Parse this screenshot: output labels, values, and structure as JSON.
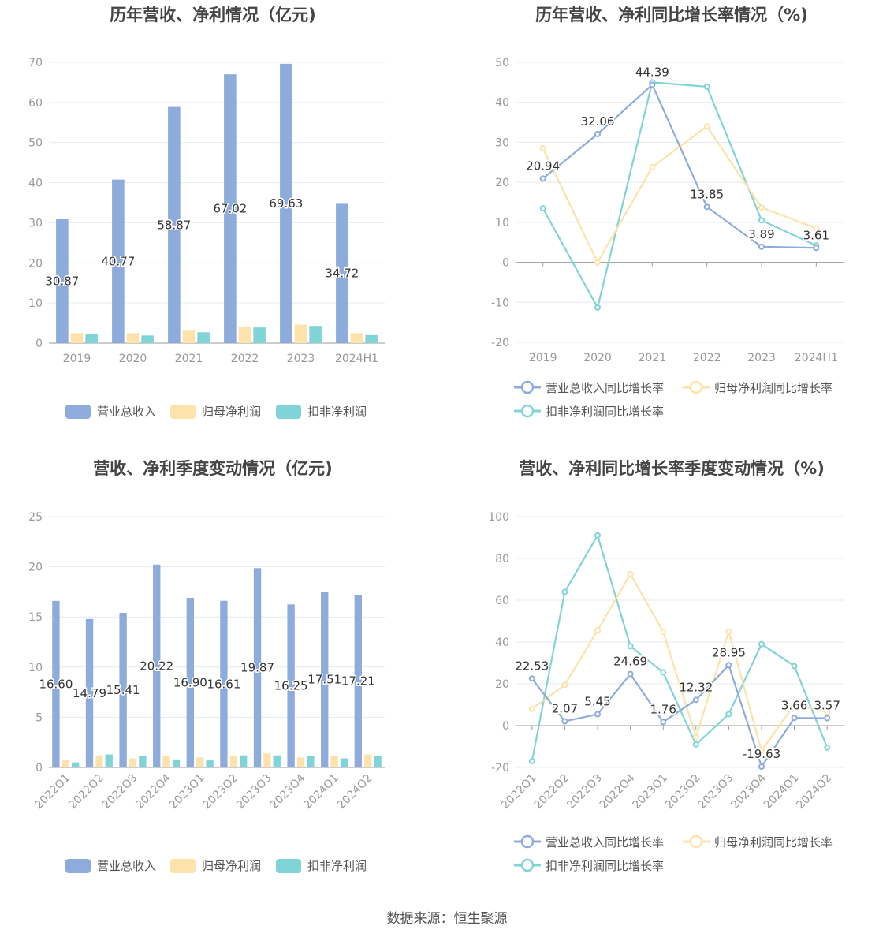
{
  "footer": {
    "source": "数据来源：恒生聚源"
  },
  "colors": {
    "revenue": "#8eacdb",
    "net_profit": "#fde2a9",
    "deducted_profit": "#80d4d8",
    "grid": "#e6e9f0",
    "axis": "#999999",
    "title": "#444444"
  },
  "chart_data": [
    {
      "id": "annual-values",
      "type": "bar",
      "title": "历年营收、净利情况（亿元)",
      "categories": [
        "2019",
        "2020",
        "2021",
        "2022",
        "2023",
        "2024H1"
      ],
      "ylim": [
        0,
        70
      ],
      "yticks": [
        0,
        10,
        20,
        30,
        40,
        50,
        60,
        70
      ],
      "grid": true,
      "legend_position": "bottom",
      "series": [
        {
          "name": "营业总收入",
          "color": "#8eacdb",
          "values": [
            30.87,
            40.77,
            58.87,
            67.02,
            69.63,
            34.72
          ],
          "show_labels": true
        },
        {
          "name": "归母净利润",
          "color": "#fde2a9",
          "values": [
            2.5,
            2.5,
            3.1,
            4.1,
            4.6,
            2.5
          ]
        },
        {
          "name": "扣非净利润",
          "color": "#80d4d8",
          "values": [
            2.2,
            1.9,
            2.7,
            3.9,
            4.3,
            2.0
          ]
        }
      ]
    },
    {
      "id": "annual-growth",
      "type": "line",
      "title": "历年营收、净利同比增长率情况（%)",
      "categories": [
        "2019",
        "2020",
        "2021",
        "2022",
        "2023",
        "2024H1"
      ],
      "ylim": [
        -20,
        50
      ],
      "yticks": [
        -20,
        -10,
        0,
        10,
        20,
        30,
        40,
        50
      ],
      "grid": true,
      "legend_position": "bottom",
      "series": [
        {
          "name": "营业总收入同比增长率",
          "color": "#8eacdb",
          "values": [
            20.94,
            32.06,
            44.39,
            13.85,
            3.89,
            3.61
          ],
          "show_labels": true
        },
        {
          "name": "归母净利润同比增长率",
          "color": "#fde2a9",
          "values": [
            28.5,
            0.0,
            23.8,
            34.0,
            13.7,
            8.5
          ]
        },
        {
          "name": "扣非净利润同比增长率",
          "color": "#80d4d8",
          "values": [
            13.5,
            -11.3,
            45.0,
            43.9,
            10.5,
            4.2
          ]
        }
      ]
    },
    {
      "id": "quarterly-values",
      "type": "bar",
      "title": "营收、净利季度变动情况（亿元)",
      "categories": [
        "2022Q1",
        "2022Q2",
        "2022Q3",
        "2022Q4",
        "2023Q1",
        "2023Q2",
        "2023Q3",
        "2023Q4",
        "2024Q1",
        "2024Q2"
      ],
      "ylim": [
        0,
        25
      ],
      "yticks": [
        0,
        5,
        10,
        15,
        20,
        25
      ],
      "grid": true,
      "legend_position": "bottom",
      "series": [
        {
          "name": "营业总收入",
          "color": "#8eacdb",
          "values": [
            16.6,
            14.79,
            15.41,
            20.22,
            16.9,
            16.61,
            19.87,
            16.25,
            17.51,
            17.21
          ],
          "show_labels": true
        },
        {
          "name": "归母净利润",
          "color": "#fde2a9",
          "values": [
            0.7,
            1.2,
            0.9,
            1.1,
            1.0,
            1.1,
            1.4,
            1.0,
            1.1,
            1.3
          ]
        },
        {
          "name": "扣非净利润",
          "color": "#80d4d8",
          "values": [
            0.5,
            1.3,
            1.1,
            0.8,
            0.7,
            1.2,
            1.2,
            1.1,
            0.9,
            1.1
          ]
        }
      ]
    },
    {
      "id": "quarterly-growth",
      "type": "line",
      "title": "营收、净利同比增长率季度变动情况（%)",
      "categories": [
        "2022Q1",
        "2022Q2",
        "2022Q3",
        "2022Q4",
        "2023Q1",
        "2023Q2",
        "2023Q3",
        "2023Q4",
        "2024Q1",
        "2024Q2"
      ],
      "ylim": [
        -20,
        100
      ],
      "yticks": [
        -20,
        0,
        20,
        40,
        60,
        80,
        100
      ],
      "grid": true,
      "legend_position": "bottom",
      "series": [
        {
          "name": "营业总收入同比增长率",
          "color": "#8eacdb",
          "values": [
            22.53,
            2.07,
            5.45,
            24.69,
            1.76,
            12.32,
            28.95,
            -19.63,
            3.66,
            3.57
          ],
          "show_labels": true
        },
        {
          "name": "归母净利润同比增长率",
          "color": "#fde2a9",
          "values": [
            8.0,
            19.5,
            45.5,
            72.5,
            45.0,
            -5.5,
            45.0,
            -12.0,
            10.0,
            6.5
          ]
        },
        {
          "name": "扣非净利润同比增长率",
          "color": "#80d4d8",
          "values": [
            -17.0,
            64.0,
            91.0,
            38.0,
            25.5,
            -9.0,
            5.5,
            39.0,
            28.5,
            -10.5
          ]
        }
      ]
    }
  ]
}
